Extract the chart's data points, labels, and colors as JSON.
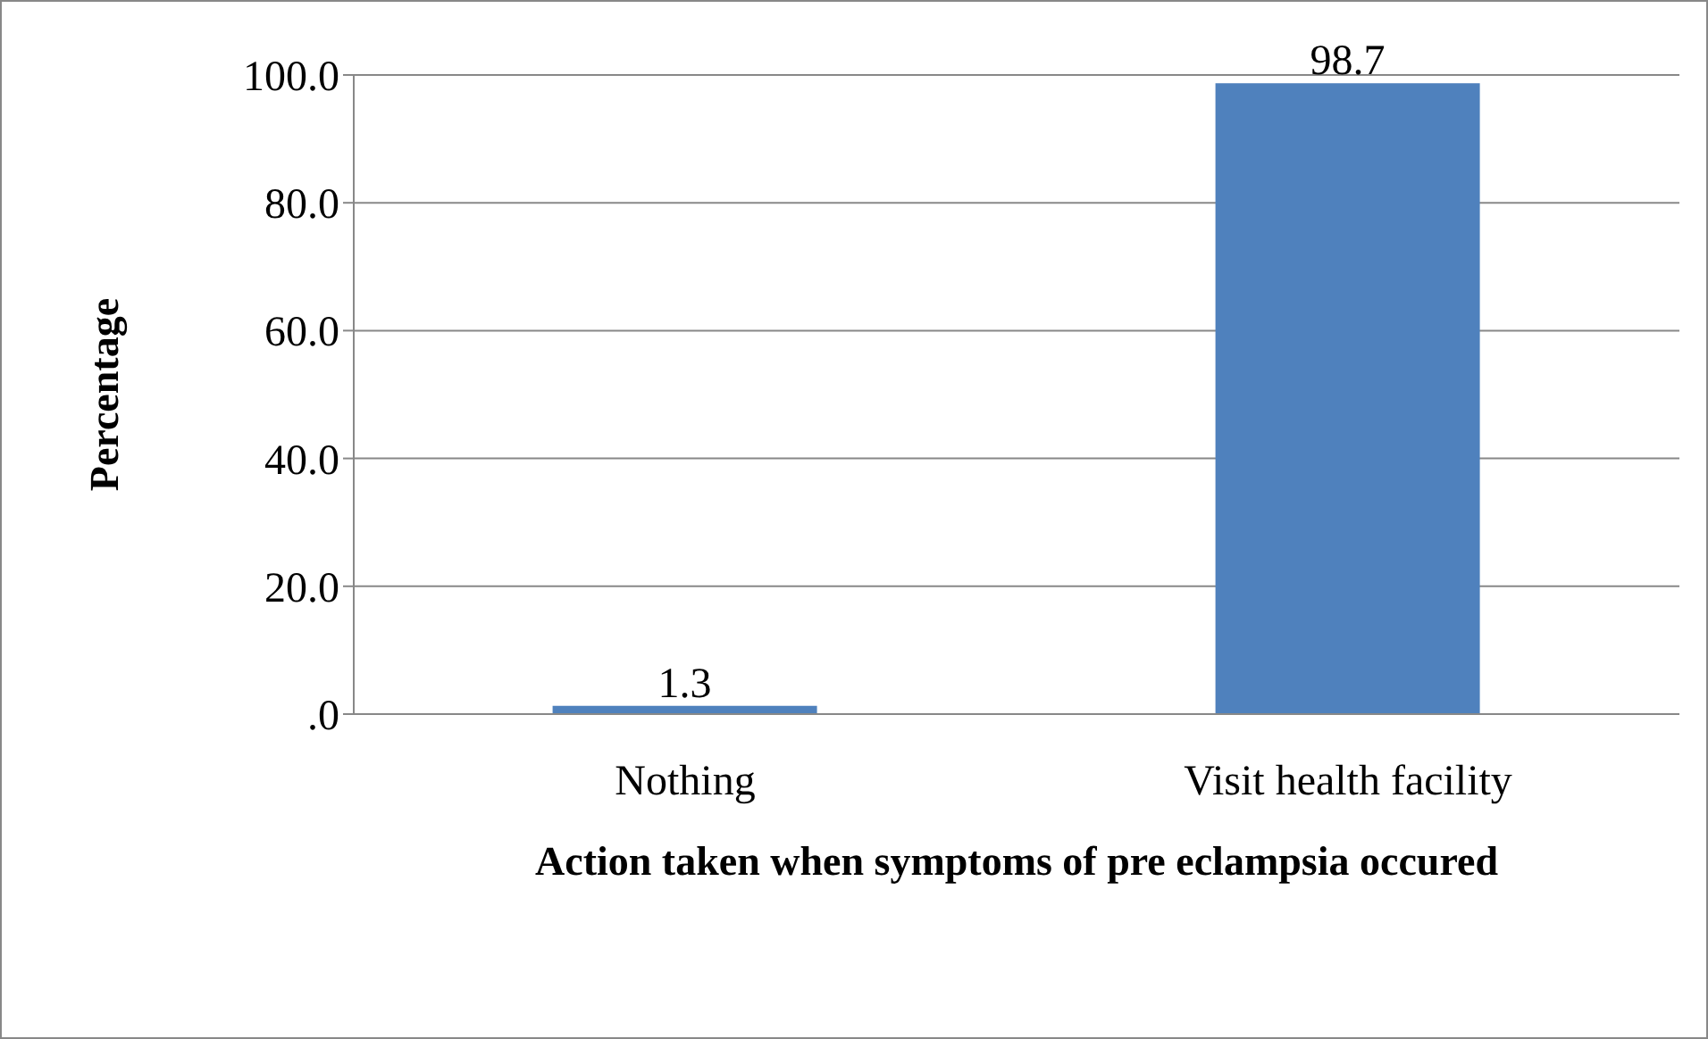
{
  "chart_data": {
    "type": "bar",
    "xlabel": "Action taken  when symptoms of pre eclampsia  occured",
    "ylabel": "Percentage",
    "categories": [
      "Nothing",
      "Visit health facility"
    ],
    "values": [
      1.3,
      98.7
    ],
    "color": "#4f81bd",
    "ylim": [
      0,
      100
    ],
    "yticks": [
      {
        "value": 0,
        "label": ".0"
      },
      {
        "value": 20,
        "label": "20.0"
      },
      {
        "value": 40,
        "label": "40.0"
      },
      {
        "value": 60,
        "label": "60.0"
      },
      {
        "value": 80,
        "label": "80.0"
      },
      {
        "value": 100,
        "label": "100.0"
      }
    ],
    "grid": "y",
    "data_labels": true,
    "legend": false
  }
}
